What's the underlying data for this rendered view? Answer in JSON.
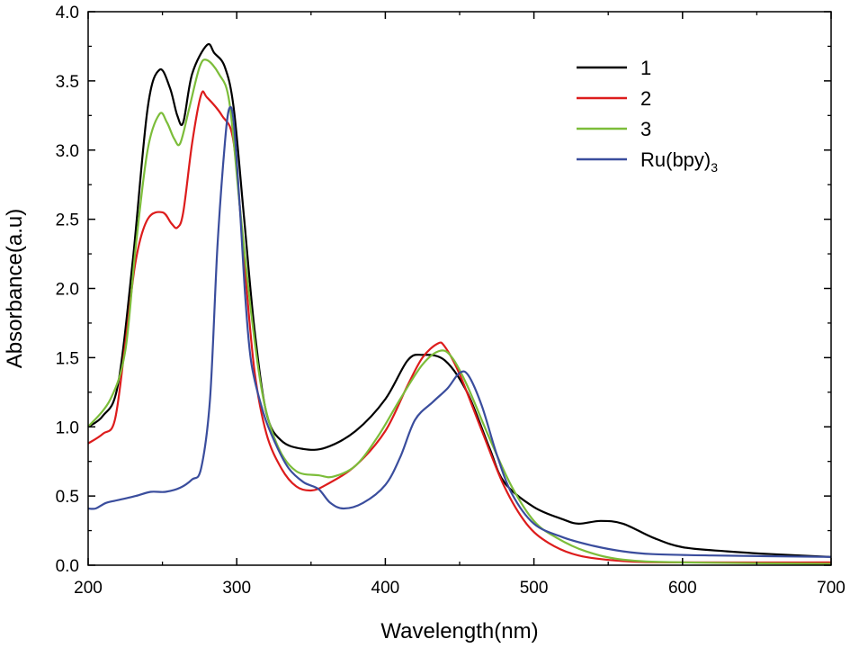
{
  "chart_data": {
    "type": "line",
    "title": "",
    "xlabel": "Wavelength(nm)",
    "ylabel": "Absorbance(a.u)",
    "xlim": [
      200,
      700
    ],
    "ylim": [
      0.0,
      4.0
    ],
    "x_ticks": [
      "200",
      "300",
      "400",
      "500",
      "600",
      "700"
    ],
    "y_ticks": [
      "0.0",
      "0.5",
      "1.0",
      "1.5",
      "2.0",
      "2.5",
      "3.0",
      "3.5",
      "4.0"
    ],
    "grid": false,
    "legend_position": "top-right",
    "series": [
      {
        "name": "1",
        "color": "#000000",
        "points": [
          [
            200,
            1.0
          ],
          [
            210,
            1.08
          ],
          [
            220,
            1.3
          ],
          [
            230,
            2.2
          ],
          [
            240,
            3.3
          ],
          [
            248,
            3.58
          ],
          [
            255,
            3.45
          ],
          [
            260,
            3.25
          ],
          [
            264,
            3.2
          ],
          [
            270,
            3.55
          ],
          [
            280,
            3.76
          ],
          [
            285,
            3.7
          ],
          [
            292,
            3.6
          ],
          [
            298,
            3.3
          ],
          [
            305,
            2.5
          ],
          [
            312,
            1.7
          ],
          [
            320,
            1.1
          ],
          [
            330,
            0.9
          ],
          [
            345,
            0.84
          ],
          [
            360,
            0.85
          ],
          [
            380,
            0.97
          ],
          [
            400,
            1.2
          ],
          [
            415,
            1.48
          ],
          [
            425,
            1.52
          ],
          [
            440,
            1.48
          ],
          [
            455,
            1.25
          ],
          [
            470,
            0.85
          ],
          [
            480,
            0.6
          ],
          [
            500,
            0.42
          ],
          [
            520,
            0.33
          ],
          [
            530,
            0.3
          ],
          [
            545,
            0.32
          ],
          [
            560,
            0.3
          ],
          [
            580,
            0.2
          ],
          [
            600,
            0.13
          ],
          [
            630,
            0.1
          ],
          [
            660,
            0.08
          ],
          [
            700,
            0.06
          ]
        ]
      },
      {
        "name": "2",
        "color": "#dd1c1c",
        "points": [
          [
            200,
            0.88
          ],
          [
            210,
            0.95
          ],
          [
            218,
            1.05
          ],
          [
            225,
            1.6
          ],
          [
            232,
            2.2
          ],
          [
            240,
            2.5
          ],
          [
            250,
            2.55
          ],
          [
            256,
            2.47
          ],
          [
            260,
            2.44
          ],
          [
            264,
            2.55
          ],
          [
            270,
            3.05
          ],
          [
            276,
            3.4
          ],
          [
            280,
            3.38
          ],
          [
            290,
            3.25
          ],
          [
            298,
            3.05
          ],
          [
            305,
            2.2
          ],
          [
            312,
            1.4
          ],
          [
            320,
            0.95
          ],
          [
            330,
            0.7
          ],
          [
            340,
            0.57
          ],
          [
            350,
            0.54
          ],
          [
            360,
            0.58
          ],
          [
            380,
            0.72
          ],
          [
            400,
            0.97
          ],
          [
            415,
            1.3
          ],
          [
            425,
            1.5
          ],
          [
            435,
            1.6
          ],
          [
            440,
            1.58
          ],
          [
            450,
            1.38
          ],
          [
            465,
            0.97
          ],
          [
            480,
            0.57
          ],
          [
            495,
            0.3
          ],
          [
            510,
            0.16
          ],
          [
            530,
            0.07
          ],
          [
            560,
            0.03
          ],
          [
            600,
            0.02
          ],
          [
            700,
            0.02
          ]
        ]
      },
      {
        "name": "3",
        "color": "#7cbd3a",
        "points": [
          [
            200,
            1.0
          ],
          [
            215,
            1.2
          ],
          [
            225,
            1.55
          ],
          [
            232,
            2.3
          ],
          [
            240,
            3.0
          ],
          [
            248,
            3.26
          ],
          [
            253,
            3.2
          ],
          [
            258,
            3.08
          ],
          [
            262,
            3.05
          ],
          [
            268,
            3.3
          ],
          [
            275,
            3.6
          ],
          [
            280,
            3.65
          ],
          [
            288,
            3.55
          ],
          [
            295,
            3.35
          ],
          [
            302,
            2.6
          ],
          [
            310,
            1.8
          ],
          [
            318,
            1.2
          ],
          [
            328,
            0.85
          ],
          [
            340,
            0.68
          ],
          [
            355,
            0.65
          ],
          [
            365,
            0.64
          ],
          [
            380,
            0.72
          ],
          [
            395,
            0.93
          ],
          [
            410,
            1.2
          ],
          [
            425,
            1.45
          ],
          [
            437,
            1.55
          ],
          [
            445,
            1.5
          ],
          [
            455,
            1.3
          ],
          [
            470,
            0.92
          ],
          [
            485,
            0.57
          ],
          [
            500,
            0.32
          ],
          [
            515,
            0.2
          ],
          [
            535,
            0.1
          ],
          [
            560,
            0.04
          ],
          [
            600,
            0.02
          ],
          [
            700,
            0.01
          ]
        ]
      },
      {
        "name": "Ru(bpy)3",
        "color": "#3a4d9d",
        "points": [
          [
            200,
            0.41
          ],
          [
            205,
            0.41
          ],
          [
            212,
            0.45
          ],
          [
            220,
            0.47
          ],
          [
            232,
            0.5
          ],
          [
            242,
            0.53
          ],
          [
            252,
            0.53
          ],
          [
            262,
            0.56
          ],
          [
            270,
            0.62
          ],
          [
            276,
            0.7
          ],
          [
            282,
            1.2
          ],
          [
            287,
            2.3
          ],
          [
            292,
            3.05
          ],
          [
            295,
            3.3
          ],
          [
            298,
            3.2
          ],
          [
            302,
            2.6
          ],
          [
            306,
            1.9
          ],
          [
            310,
            1.45
          ],
          [
            318,
            1.1
          ],
          [
            326,
            0.88
          ],
          [
            335,
            0.7
          ],
          [
            345,
            0.6
          ],
          [
            355,
            0.55
          ],
          [
            363,
            0.45
          ],
          [
            372,
            0.41
          ],
          [
            385,
            0.45
          ],
          [
            400,
            0.58
          ],
          [
            410,
            0.78
          ],
          [
            420,
            1.05
          ],
          [
            432,
            1.18
          ],
          [
            442,
            1.28
          ],
          [
            450,
            1.39
          ],
          [
            456,
            1.37
          ],
          [
            465,
            1.15
          ],
          [
            475,
            0.8
          ],
          [
            485,
            0.52
          ],
          [
            500,
            0.3
          ],
          [
            520,
            0.2
          ],
          [
            540,
            0.14
          ],
          [
            560,
            0.1
          ],
          [
            580,
            0.08
          ],
          [
            620,
            0.07
          ],
          [
            700,
            0.06
          ]
        ]
      }
    ]
  }
}
